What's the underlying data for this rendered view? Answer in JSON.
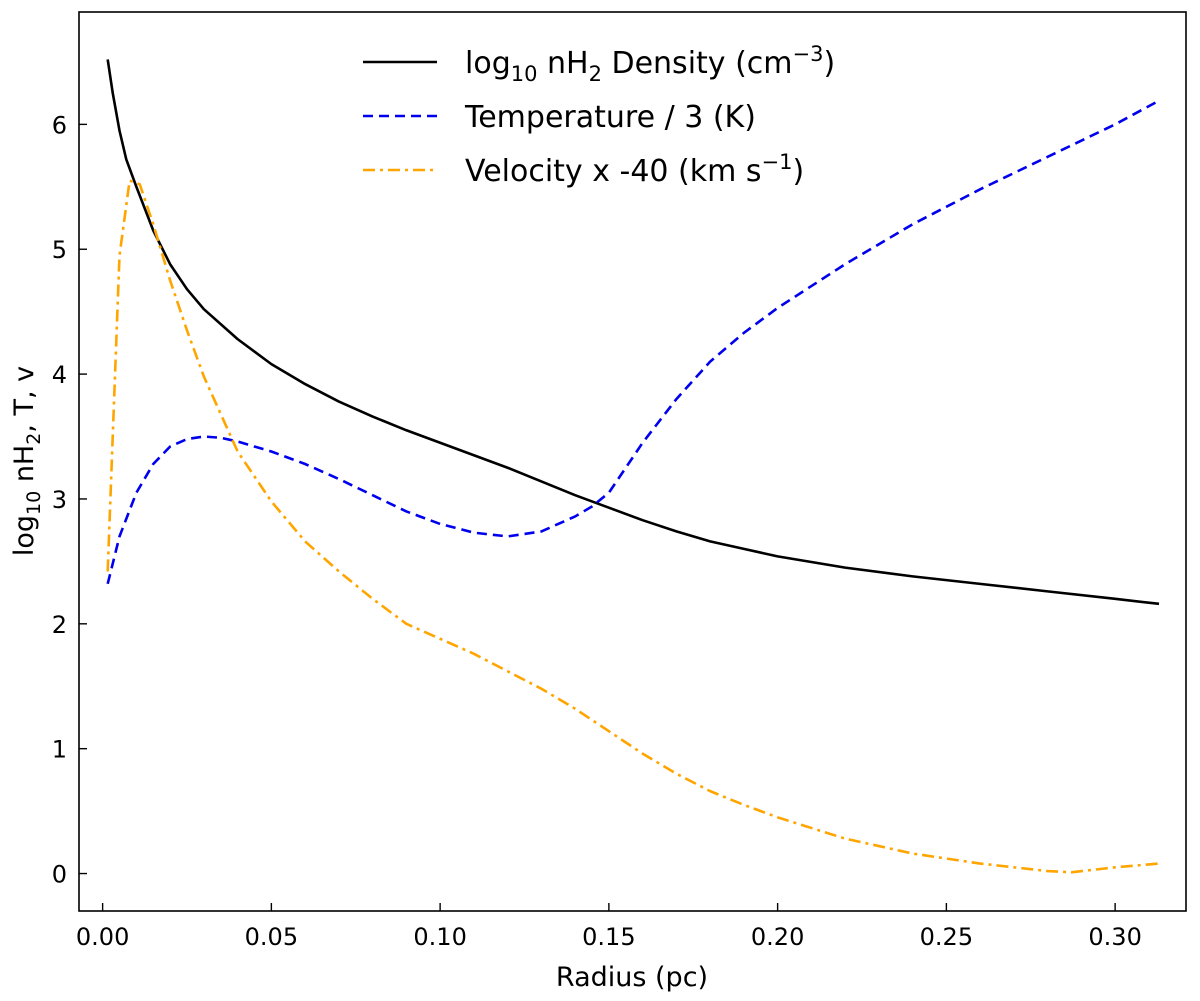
{
  "chart_data": {
    "type": "line",
    "title": "",
    "xlabel": "Radius (pc)",
    "ylabel": {
      "prefix": "log",
      "sub": "10",
      "mid": " nH",
      "sub2": "2",
      "suffix": ", T, v"
    },
    "xlim": [
      -0.007,
      0.321
    ],
    "ylim": [
      -0.3,
      6.9
    ],
    "x_ticks": [
      0.0,
      0.05,
      0.1,
      0.15,
      0.2,
      0.25,
      0.3
    ],
    "x_tick_labels": [
      "0.00",
      "0.05",
      "0.10",
      "0.15",
      "0.20",
      "0.25",
      "0.30"
    ],
    "y_ticks": [
      0,
      1,
      2,
      3,
      4,
      5,
      6
    ],
    "y_tick_labels": [
      "0",
      "1",
      "2",
      "3",
      "4",
      "5",
      "6"
    ],
    "grid": false,
    "legend_position": "top-center",
    "series": [
      {
        "key": "density",
        "legend_parts": [
          {
            "text": "log",
            "kind": "normal"
          },
          {
            "text": "10",
            "kind": "sub"
          },
          {
            "text": " nH",
            "kind": "normal"
          },
          {
            "text": "2",
            "kind": "sub"
          },
          {
            "text": " Density (cm",
            "kind": "normal"
          },
          {
            "text": "−3",
            "kind": "sup"
          },
          {
            "text": ")",
            "kind": "normal"
          }
        ],
        "color": "#000000",
        "dash": "",
        "x": [
          0.0015,
          0.003,
          0.005,
          0.007,
          0.01,
          0.015,
          0.02,
          0.025,
          0.03,
          0.04,
          0.05,
          0.06,
          0.07,
          0.08,
          0.09,
          0.1,
          0.11,
          0.12,
          0.13,
          0.14,
          0.15,
          0.16,
          0.17,
          0.18,
          0.19,
          0.2,
          0.22,
          0.24,
          0.26,
          0.28,
          0.3,
          0.313
        ],
        "y": [
          6.52,
          6.25,
          5.95,
          5.72,
          5.5,
          5.15,
          4.88,
          4.68,
          4.52,
          4.28,
          4.08,
          3.92,
          3.78,
          3.66,
          3.55,
          3.45,
          3.35,
          3.25,
          3.14,
          3.03,
          2.93,
          2.83,
          2.74,
          2.66,
          2.6,
          2.54,
          2.45,
          2.38,
          2.32,
          2.26,
          2.2,
          2.16
        ]
      },
      {
        "key": "temperature",
        "legend_parts": [
          {
            "text": "Temperature / 3 (K)",
            "kind": "normal"
          }
        ],
        "color": "#0000ee",
        "dash": "10,6",
        "x": [
          0.0015,
          0.005,
          0.01,
          0.015,
          0.02,
          0.025,
          0.03,
          0.035,
          0.04,
          0.05,
          0.06,
          0.07,
          0.08,
          0.09,
          0.1,
          0.11,
          0.12,
          0.13,
          0.14,
          0.145,
          0.15,
          0.16,
          0.17,
          0.18,
          0.19,
          0.2,
          0.22,
          0.24,
          0.26,
          0.28,
          0.3,
          0.313
        ],
        "y": [
          2.32,
          2.7,
          3.05,
          3.28,
          3.42,
          3.48,
          3.5,
          3.49,
          3.46,
          3.38,
          3.28,
          3.16,
          3.03,
          2.9,
          2.8,
          2.73,
          2.7,
          2.74,
          2.86,
          2.94,
          3.05,
          3.45,
          3.8,
          4.1,
          4.33,
          4.53,
          4.88,
          5.2,
          5.48,
          5.74,
          6.0,
          6.19
        ]
      },
      {
        "key": "velocity",
        "legend_parts": [
          {
            "text": "Velocity x -40 (km s",
            "kind": "normal"
          },
          {
            "text": "−1",
            "kind": "sup"
          },
          {
            "text": ")",
            "kind": "normal"
          }
        ],
        "color": "#ffa500",
        "dash": "12,5,3,5",
        "x": [
          0.0015,
          0.005,
          0.008,
          0.011,
          0.015,
          0.02,
          0.025,
          0.03,
          0.04,
          0.05,
          0.06,
          0.07,
          0.08,
          0.09,
          0.1,
          0.11,
          0.12,
          0.13,
          0.14,
          0.15,
          0.16,
          0.17,
          0.18,
          0.19,
          0.2,
          0.22,
          0.24,
          0.26,
          0.28,
          0.287,
          0.3,
          0.313
        ],
        "y": [
          2.42,
          4.95,
          5.55,
          5.52,
          5.2,
          4.75,
          4.35,
          3.98,
          3.38,
          2.98,
          2.66,
          2.42,
          2.2,
          2.0,
          1.88,
          1.76,
          1.62,
          1.48,
          1.32,
          1.14,
          0.96,
          0.8,
          0.66,
          0.55,
          0.45,
          0.28,
          0.16,
          0.08,
          0.02,
          0.01,
          0.05,
          0.08
        ]
      }
    ]
  }
}
